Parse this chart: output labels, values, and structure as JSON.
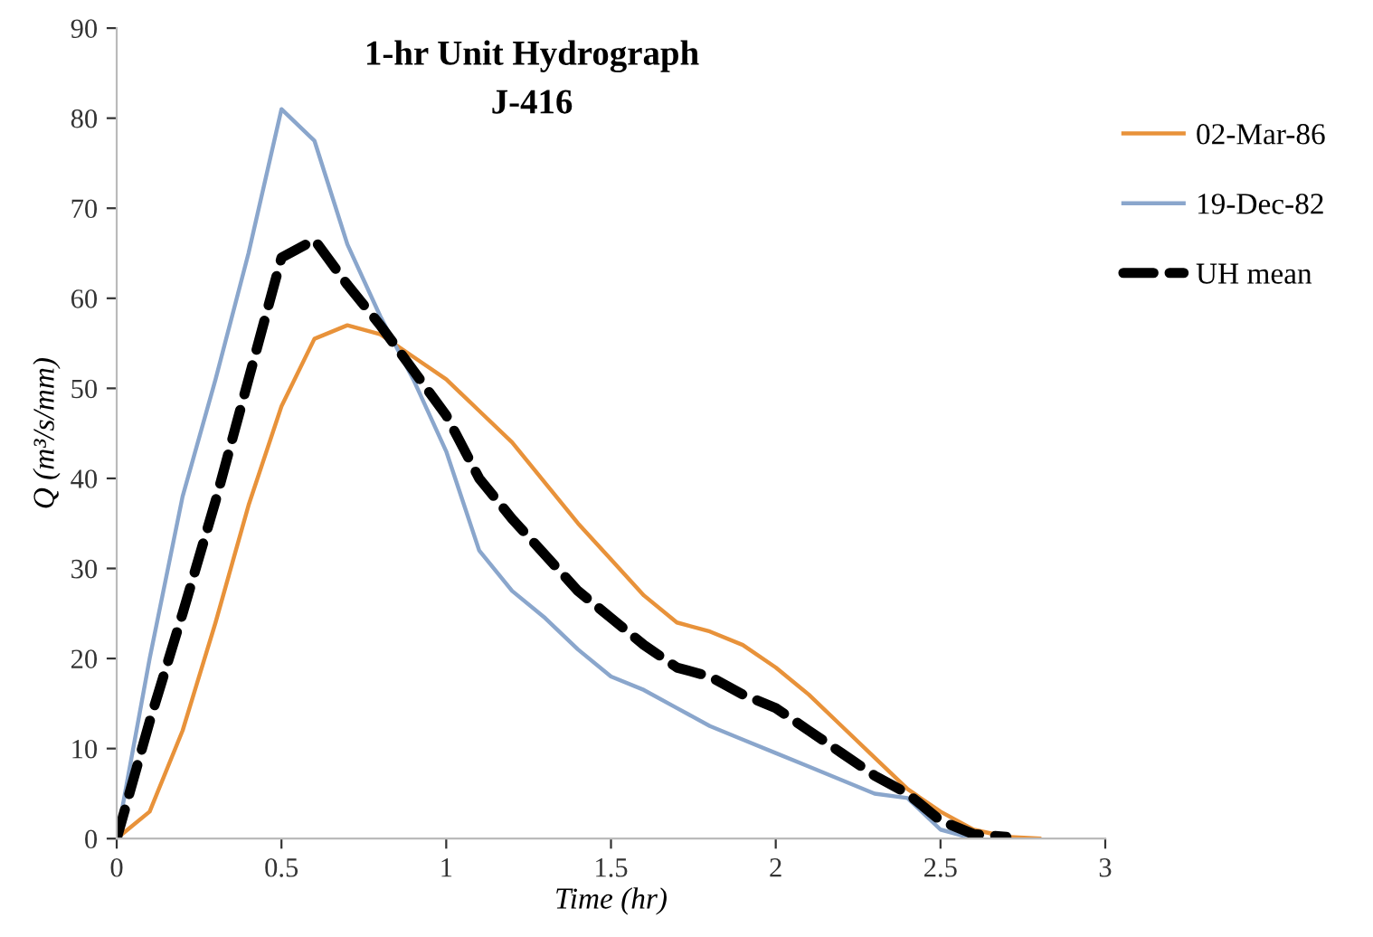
{
  "chart_data": {
    "type": "line",
    "title": "1-hr Unit Hydrograph",
    "subtitle": "J-416",
    "xlabel": "Time (hr)",
    "ylabel": "Q (m³/s/mm)",
    "xlim": [
      0,
      3
    ],
    "xticks": [
      0,
      0.5,
      1,
      1.5,
      2,
      2.5,
      3
    ],
    "ylim": [
      0,
      90
    ],
    "yticks": [
      0,
      10,
      20,
      30,
      40,
      50,
      60,
      70,
      80,
      90
    ],
    "grid": false,
    "legend": "right",
    "marker": "none",
    "series": [
      {
        "name": "02-Mar-86",
        "color": "#e8923a",
        "line_style": "solid",
        "x": [
          0,
          0.1,
          0.2,
          0.3,
          0.4,
          0.5,
          0.6,
          0.7,
          0.8,
          0.9,
          1.0,
          1.1,
          1.2,
          1.3,
          1.4,
          1.5,
          1.6,
          1.7,
          1.8,
          1.9,
          2.0,
          2.1,
          2.2,
          2.3,
          2.4,
          2.5,
          2.6,
          2.7,
          2.8
        ],
        "values": [
          0,
          3,
          12,
          24,
          37,
          48,
          55.5,
          57,
          56,
          53.5,
          51,
          47.5,
          44,
          39.5,
          35,
          31,
          27,
          24,
          23,
          21.5,
          19,
          16,
          12.5,
          9,
          5.5,
          3,
          1,
          0.2,
          0
        ]
      },
      {
        "name": "19-Dec-82",
        "color": "#8aa6cc",
        "line_style": "solid",
        "x": [
          0,
          0.1,
          0.2,
          0.3,
          0.4,
          0.5,
          0.6,
          0.7,
          0.8,
          0.9,
          1.0,
          1.1,
          1.2,
          1.3,
          1.4,
          1.5,
          1.6,
          1.7,
          1.8,
          1.9,
          2.0,
          2.1,
          2.2,
          2.3,
          2.4,
          2.5,
          2.6
        ],
        "values": [
          0,
          20,
          38,
          51,
          65,
          81,
          77.5,
          66,
          58,
          51,
          43,
          32,
          27.5,
          24.5,
          21,
          18,
          16.5,
          14.5,
          12.5,
          11,
          9.5,
          8,
          6.5,
          5,
          4.5,
          1,
          0
        ]
      },
      {
        "name": "UH mean",
        "color": "#000000",
        "line_style": "dashed",
        "x": [
          0,
          0.1,
          0.2,
          0.3,
          0.4,
          0.5,
          0.6,
          0.7,
          0.8,
          0.9,
          1.0,
          1.1,
          1.2,
          1.3,
          1.4,
          1.5,
          1.6,
          1.7,
          1.8,
          1.9,
          2.0,
          2.1,
          2.2,
          2.3,
          2.4,
          2.5,
          2.6,
          2.7
        ],
        "values": [
          0,
          13,
          25,
          37.5,
          51,
          64.5,
          66.5,
          61.5,
          57,
          52,
          47,
          40,
          35.5,
          31.5,
          27.5,
          24.5,
          21.5,
          19,
          18,
          16,
          14.5,
          12,
          9.5,
          7,
          5,
          2,
          0.5,
          0.2
        ]
      }
    ]
  }
}
